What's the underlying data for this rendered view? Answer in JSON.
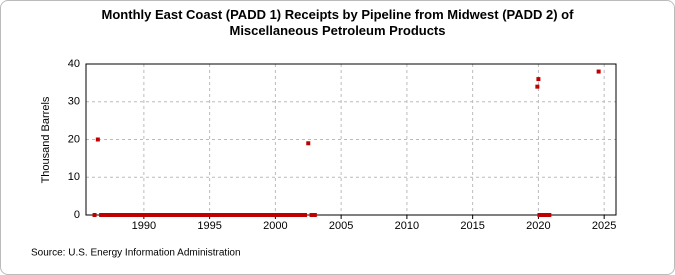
{
  "chart_data": {
    "type": "scatter",
    "title": "Monthly East Coast (PADD 1) Receipts by Pipeline from Midwest (PADD 2) of Miscellaneous Petroleum Products",
    "y_label": "Thousand Barrels",
    "source": "Source: U.S. Energy Information Administration",
    "xlim": [
      1985.6,
      2025.9
    ],
    "ylim": [
      0,
      40
    ],
    "xticks": [
      1990,
      1995,
      2000,
      2005,
      2010,
      2015,
      2020,
      2025
    ],
    "yticks": [
      0,
      10,
      20,
      30,
      40
    ],
    "grid": true,
    "series": [
      {
        "color": "#c00000",
        "x": [
          1986.25,
          1986.5,
          1986.75,
          1987,
          1987.25,
          1987.5,
          1987.75,
          1988,
          1988.25,
          1988.5,
          1988.75,
          1989,
          1989.25,
          1989.5,
          1989.75,
          1990,
          1990.25,
          1990.5,
          1990.75,
          1991,
          1991.25,
          1991.5,
          1991.75,
          1992,
          1992.25,
          1992.5,
          1992.75,
          1993,
          1993.25,
          1993.5,
          1993.75,
          1994,
          1994.25,
          1994.5,
          1994.75,
          1995,
          1995.25,
          1995.5,
          1995.75,
          1996,
          1996.25,
          1996.5,
          1996.75,
          1997,
          1997.25,
          1997.5,
          1997.75,
          1998,
          1998.25,
          1998.5,
          1998.75,
          1999,
          1999.25,
          1999.5,
          1999.75,
          2000,
          2000.25,
          2000.5,
          2000.75,
          2001,
          2001.25,
          2001.5,
          2001.75,
          2002,
          2002.25,
          2002.5,
          2002.75,
          2003,
          2019.92,
          2020.0,
          2020.08,
          2020.33,
          2020.58,
          2020.83,
          2024.58
        ],
        "values": [
          0,
          20,
          0,
          0,
          0,
          0,
          0,
          0,
          0,
          0,
          0,
          0,
          0,
          0,
          0,
          0,
          0,
          0,
          0,
          0,
          0,
          0,
          0,
          0,
          0,
          0,
          0,
          0,
          0,
          0,
          0,
          0,
          0,
          0,
          0,
          0,
          0,
          0,
          0,
          0,
          0,
          0,
          0,
          0,
          0,
          0,
          0,
          0,
          0,
          0,
          0,
          0,
          0,
          0,
          0,
          0,
          0,
          0,
          0,
          0,
          0,
          0,
          0,
          0,
          0,
          19,
          0,
          0,
          34,
          36,
          0,
          0,
          0,
          0,
          38
        ]
      }
    ]
  }
}
